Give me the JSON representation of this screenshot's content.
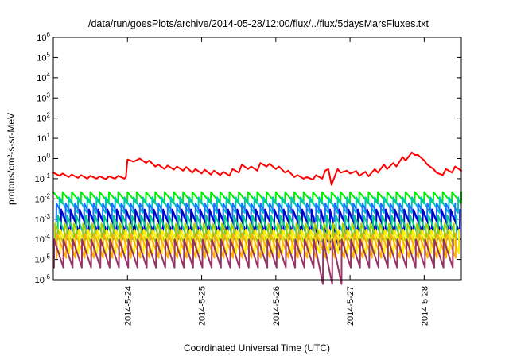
{
  "chart_data": {
    "type": "line",
    "title": "/data/run/goesPlots/archive/2014-05-28/12:00/flux/../flux/5daysMarsFluxes.txt",
    "xlabel": "Coordinated Universal Time (UTC)",
    "ylabel": "protons/cm²-s-sr-MeV",
    "yscale": "log",
    "ylim": [
      1e-06,
      1000000.0
    ],
    "xlim": [
      "2014-05-23 00:00",
      "2014-05-28 12:00"
    ],
    "x_ticks": [
      "2014-5-24",
      "2014-5-25",
      "2014-5-26",
      "2014-5-27",
      "2014-5-28"
    ],
    "y_ticks": [
      {
        "base": "10",
        "exp": "-6",
        "value": 1e-06
      },
      {
        "base": "10",
        "exp": "-5",
        "value": 1e-05
      },
      {
        "base": "10",
        "exp": "-4",
        "value": 0.0001
      },
      {
        "base": "10",
        "exp": "-3",
        "value": 0.001
      },
      {
        "base": "10",
        "exp": "-2",
        "value": 0.01
      },
      {
        "base": "10",
        "exp": "-1",
        "value": 0.1
      },
      {
        "base": "10",
        "exp": "0",
        "value": 1
      },
      {
        "base": "10",
        "exp": "1",
        "value": 10
      },
      {
        "base": "10",
        "exp": "2",
        "value": 100
      },
      {
        "base": "10",
        "exp": "3",
        "value": 1000
      },
      {
        "base": "10",
        "exp": "4",
        "value": 10000
      },
      {
        "base": "10",
        "exp": "5",
        "value": 100000
      },
      {
        "base": "10",
        "exp": "6",
        "value": 1000000
      }
    ],
    "grid": false,
    "series": [
      {
        "color": "#ff0000",
        "x": [
          "2014-05-23 00:00",
          "2014-05-23 02:00",
          "2014-05-23 03:00",
          "2014-05-23 05:00",
          "2014-05-23 06:00",
          "2014-05-23 08:00",
          "2014-05-23 09:00",
          "2014-05-23 11:00",
          "2014-05-23 12:00",
          "2014-05-23 14:00",
          "2014-05-23 15:00",
          "2014-05-23 17:00",
          "2014-05-23 18:00",
          "2014-05-23 20:00",
          "2014-05-23 21:00",
          "2014-05-23 23:00",
          "2014-05-23 23:30",
          "2014-05-24 00:00",
          "2014-05-24 02:00",
          "2014-05-24 04:00",
          "2014-05-24 06:00",
          "2014-05-24 07:00",
          "2014-05-24 09:00",
          "2014-05-24 10:00",
          "2014-05-24 12:00",
          "2014-05-24 13:00",
          "2014-05-24 15:00",
          "2014-05-24 16:00",
          "2014-05-24 18:00",
          "2014-05-24 19:00",
          "2014-05-24 21:00",
          "2014-05-24 22:00",
          "2014-05-25 00:00",
          "2014-05-25 01:00",
          "2014-05-25 03:00",
          "2014-05-25 04:00",
          "2014-05-25 06:00",
          "2014-05-25 07:00",
          "2014-05-25 09:00",
          "2014-05-25 10:00",
          "2014-05-25 12:00",
          "2014-05-25 13:00",
          "2014-05-25 15:00",
          "2014-05-25 16:00",
          "2014-05-25 18:00",
          "2014-05-25 19:00",
          "2014-05-25 21:00",
          "2014-05-25 22:00",
          "2014-05-26 00:00",
          "2014-05-26 01:00",
          "2014-05-26 03:00",
          "2014-05-26 04:00",
          "2014-05-26 06:00",
          "2014-05-26 07:00",
          "2014-05-26 09:00",
          "2014-05-26 10:00",
          "2014-05-26 12:00",
          "2014-05-26 13:00",
          "2014-05-26 15:00",
          "2014-05-26 16:00",
          "2014-05-26 17:00",
          "2014-05-26 18:00",
          "2014-05-26 20:00",
          "2014-05-26 21:00",
          "2014-05-26 23:00",
          "2014-05-27 00:00",
          "2014-05-27 02:00",
          "2014-05-27 03:00",
          "2014-05-27 05:00",
          "2014-05-27 06:00",
          "2014-05-27 08:00",
          "2014-05-27 09:00",
          "2014-05-27 11:00",
          "2014-05-27 12:00",
          "2014-05-27 14:00",
          "2014-05-27 15:00",
          "2014-05-27 17:00",
          "2014-05-27 18:00",
          "2014-05-27 20:00",
          "2014-05-27 21:00",
          "2014-05-27 22:00",
          "2014-05-28 00:00",
          "2014-05-28 01:00",
          "2014-05-28 03:00",
          "2014-05-28 04:00",
          "2014-05-28 06:00",
          "2014-05-28 07:00",
          "2014-05-28 09:00",
          "2014-05-28 10:00",
          "2014-05-28 12:00"
        ],
        "y": [
          0.2,
          0.14,
          0.18,
          0.12,
          0.16,
          0.11,
          0.15,
          0.1,
          0.14,
          0.1,
          0.13,
          0.095,
          0.13,
          0.1,
          0.14,
          0.1,
          0.12,
          0.9,
          0.7,
          1.0,
          0.6,
          0.8,
          0.4,
          0.5,
          0.3,
          0.45,
          0.28,
          0.4,
          0.25,
          0.38,
          0.2,
          0.3,
          0.18,
          0.28,
          0.16,
          0.25,
          0.15,
          0.22,
          0.14,
          0.3,
          0.2,
          0.5,
          0.3,
          0.4,
          0.25,
          0.6,
          0.4,
          0.55,
          0.3,
          0.4,
          0.2,
          0.25,
          0.12,
          0.15,
          0.1,
          0.12,
          0.09,
          0.15,
          0.1,
          0.25,
          0.3,
          0.05,
          0.3,
          0.2,
          0.25,
          0.18,
          0.24,
          0.14,
          0.22,
          0.13,
          0.3,
          0.2,
          0.5,
          0.3,
          0.6,
          0.4,
          1.2,
          0.8,
          2.0,
          1.5,
          1.5,
          0.8,
          0.5,
          0.3,
          0.2,
          0.15,
          0.3,
          0.2,
          0.4,
          0.25
        ]
      },
      {
        "color": "#00ee00",
        "period_hours": 3,
        "high": 0.022,
        "low": 0.006,
        "phase": 0.0
      },
      {
        "color": "#00c4c4",
        "period_hours": 3,
        "high": 0.012,
        "low": 0.002,
        "phase": 0.33
      },
      {
        "color": "#1e6fff",
        "period_hours": 3,
        "high": 0.006,
        "low": 0.0008,
        "phase": 0.66
      },
      {
        "color": "#0000cc",
        "period_hours": 3,
        "high": 0.003,
        "low": 0.0002,
        "phase": 0.15,
        "dip_at": "2014-05-26 16:00"
      },
      {
        "color": "#00cc88",
        "period_hours": 3,
        "high": 0.0015,
        "low": 0.0001,
        "phase": 0.5
      },
      {
        "color": "#aacc00",
        "period_hours": 3,
        "high": 0.0006,
        "low": 5e-05,
        "phase": 0.8
      },
      {
        "color": "#ffee00",
        "period_hours": 3,
        "high": 0.0003,
        "low": 2e-05,
        "phase": 0.25
      },
      {
        "color": "#ffb000",
        "period_hours": 3,
        "high": 0.0002,
        "low": 1.2e-05,
        "phase": 0.6
      },
      {
        "color": "#993366",
        "period_hours": 3,
        "high": 0.0001,
        "low": 4e-06,
        "phase": 0.9,
        "dip_at": "2014-05-26 16:00"
      }
    ]
  }
}
